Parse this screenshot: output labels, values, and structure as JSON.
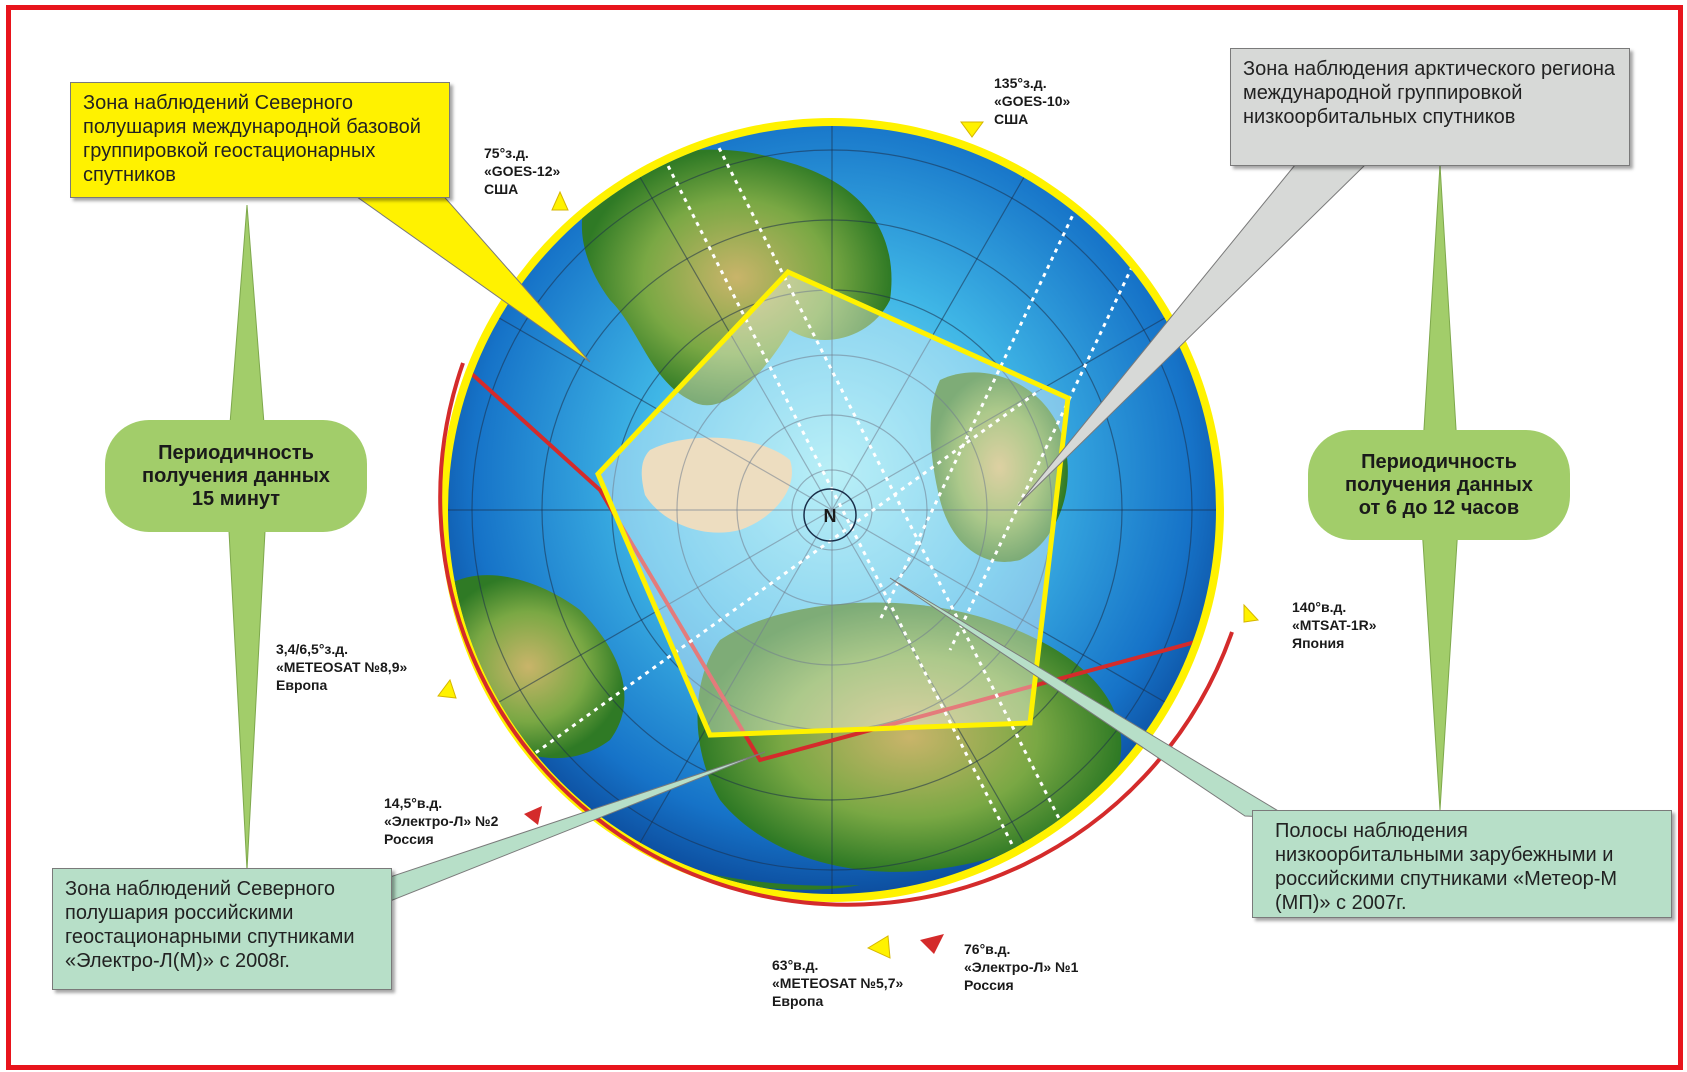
{
  "callouts": {
    "geo_international": "Зона наблюдений Северного полушария международной базовой группировкой геостационарных спутников",
    "arctic_leo": "Зона наблюдения арктического региона международной группировкой низкоорбитальных  спутников",
    "russian_geo": "Зона наблюдений Северного полушария российскими геостационарными спутниками «Электро-Л(М)» с 2008г.",
    "leo_strips": "Полосы наблюдения низкоорбитальными зарубежными и российскими спутниками «Метеор-М (МП)» с 2007г."
  },
  "periodicity": {
    "left": [
      "Периодичность",
      "получения данных",
      "15 минут"
    ],
    "right": [
      "Периодичность",
      "получения данных",
      "от 6 до 12 часов"
    ]
  },
  "satellites": [
    {
      "id": "goes10",
      "lines": [
        "135°з.д.",
        "«GOES-10»",
        "США"
      ],
      "marker": "yellow"
    },
    {
      "id": "goes12",
      "lines": [
        "75°з.д.",
        "«GOES-12»",
        "США"
      ],
      "marker": "yellow"
    },
    {
      "id": "meteosat89",
      "lines": [
        "3,4/6,5°з.д.",
        "«METEOSAT №8,9»",
        "Европа"
      ],
      "marker": "yellow"
    },
    {
      "id": "elektro2",
      "lines": [
        "14,5°в.д.",
        "«Электро-Л» №2",
        "Россия"
      ],
      "marker": "red"
    },
    {
      "id": "meteosat57",
      "lines": [
        "63°в.д.",
        "«METEOSAT №5,7»",
        "Европа"
      ],
      "marker": "yellow"
    },
    {
      "id": "elektro1",
      "lines": [
        "76°в.д.",
        "«Электро-Л» №1",
        "Россия"
      ],
      "marker": "red"
    },
    {
      "id": "mtsat",
      "lines": [
        "140°в.д.",
        "«MTSAT-1R»",
        "Япония"
      ],
      "marker": "yellow"
    }
  ],
  "pole_label": "N",
  "colors": {
    "frame": "#e8141c",
    "yellow_zone": "#fff200",
    "red_zone": "#d42b2b",
    "ocean": "#1e88d6",
    "land": "#3f8f2a",
    "callout_green": "#b7dfc8",
    "callout_gray": "#d7d9d7",
    "periodicity_fill": "#a2cd6a"
  }
}
